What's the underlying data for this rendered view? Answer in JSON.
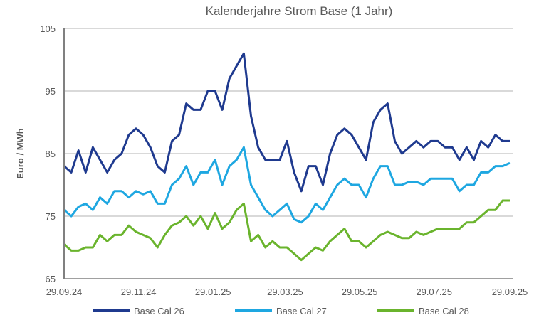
{
  "chart_data": {
    "type": "line",
    "title": "Kalenderjahre Strom Base (1 Jahr)",
    "xlabel": "",
    "ylabel": "Euro / MWh",
    "ylim": [
      65,
      105
    ],
    "yticks": [
      65,
      75,
      85,
      95,
      105
    ],
    "xlim_days": [
      0,
      365
    ],
    "xticks": [
      {
        "label": "29.09.24",
        "day": 0
      },
      {
        "label": "29.11.24",
        "day": 61
      },
      {
        "label": "29.01.25",
        "day": 122
      },
      {
        "label": "29.03.25",
        "day": 181
      },
      {
        "label": "29.05.25",
        "day": 242
      },
      {
        "label": "29.07.25",
        "day": 303
      },
      {
        "label": "29.09.25",
        "day": 365
      }
    ],
    "grid": "horizontal",
    "legend": "bottom",
    "series": [
      {
        "name": "Base Cal 26",
        "color": "#1f3a8f",
        "values": [
          83,
          82,
          85.5,
          82,
          86,
          84,
          82,
          84,
          85,
          88,
          89,
          88,
          86,
          83,
          82,
          87,
          88,
          93,
          92,
          92,
          95,
          95,
          92,
          97,
          99,
          101,
          91,
          86,
          84,
          84,
          84,
          87,
          82,
          79,
          83,
          83,
          80,
          85,
          88,
          89,
          88,
          86,
          84,
          90,
          92,
          93,
          87,
          85,
          86,
          87,
          86,
          87,
          87,
          86,
          86,
          84,
          86,
          84,
          87,
          86,
          88,
          87,
          87
        ]
      },
      {
        "name": "Base Cal 27",
        "color": "#1ea7e1",
        "values": [
          76,
          75,
          76.5,
          77,
          76,
          78,
          77,
          79,
          79,
          78,
          79,
          78.5,
          79,
          77,
          77,
          80,
          81,
          83,
          80,
          82,
          82,
          84,
          80,
          83,
          84,
          86,
          80,
          78,
          76,
          75,
          76,
          77,
          74.5,
          74,
          75,
          77,
          76,
          78,
          80,
          81,
          80,
          80,
          78,
          81,
          83,
          83,
          80,
          80,
          80.5,
          80.5,
          80,
          81,
          81,
          81,
          81,
          79,
          80,
          80,
          82,
          82,
          83,
          83,
          83.5
        ]
      },
      {
        "name": "Base Cal 28",
        "color": "#6ab42d",
        "values": [
          70.5,
          69.5,
          69.5,
          70,
          70,
          72,
          71,
          72,
          72,
          73.5,
          72.5,
          72,
          71.5,
          70,
          72,
          73.5,
          74,
          75,
          73.5,
          75,
          73,
          75.5,
          73,
          74,
          76,
          77,
          71,
          72,
          70,
          71,
          70,
          70,
          69,
          68,
          69,
          70,
          69.5,
          71,
          72,
          73,
          71,
          71,
          70,
          71,
          72,
          72.5,
          72,
          71.5,
          71.5,
          72.5,
          72,
          72.5,
          73,
          73,
          73,
          73,
          74,
          74,
          75,
          76,
          76,
          77.5,
          77.5
        ]
      }
    ]
  }
}
